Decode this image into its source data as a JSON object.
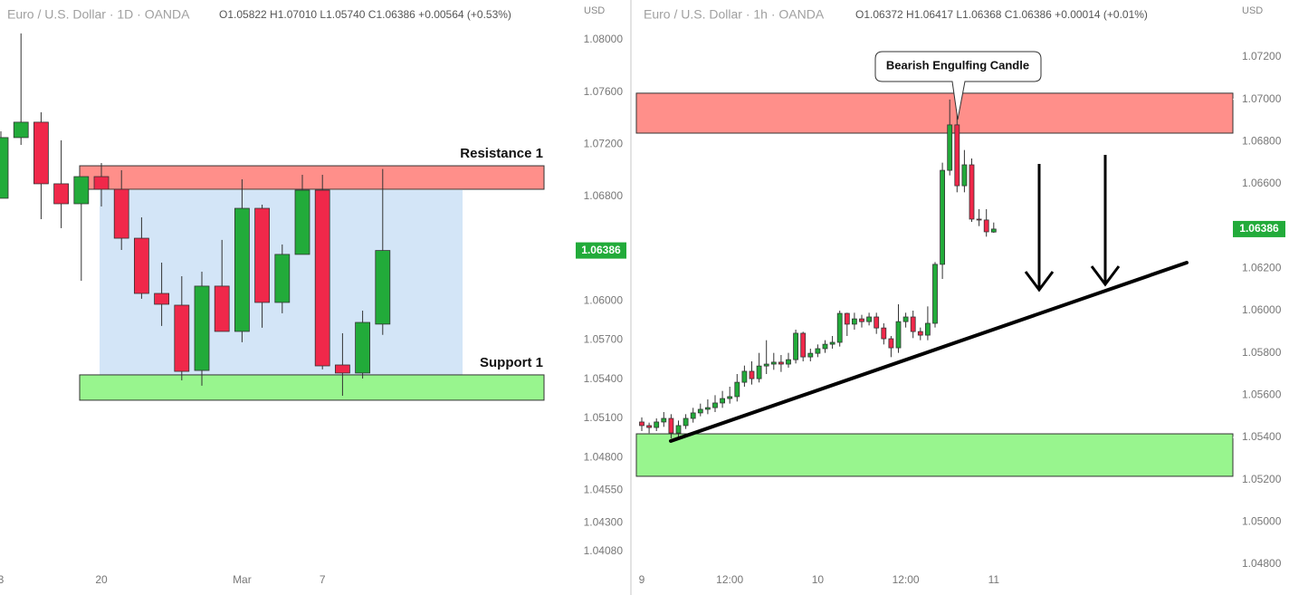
{
  "chart_data": [
    {
      "type": "candlestick",
      "title": "Euro / U.S. Dollar · 1D · OANDA",
      "subtitle": "O1.05822 H1.07010 L1.05740 C1.06386 +0.00564 (+0.53%)",
      "ylabel": "USD",
      "categories": [
        "3",
        null,
        null,
        null,
        null,
        "20",
        null,
        null,
        null,
        null,
        null,
        null,
        "Mar",
        null,
        null,
        null,
        "7",
        null,
        null,
        null
      ],
      "open": [
        1.06786,
        1.07251,
        1.07369,
        1.06897,
        1.06744,
        1.06952,
        1.06855,
        1.0648,
        1.06057,
        1.05967,
        1.05467,
        1.06113,
        1.05766,
        1.06709,
        1.05988,
        1.06356,
        1.06848,
        1.05509,
        1.05447,
        1.05822
      ],
      "high": [
        1.07299,
        1.08049,
        1.07445,
        1.0723,
        1.06952,
        1.07056,
        1.07001,
        1.0664,
        1.06293,
        1.06189,
        1.06224,
        1.06467,
        1.06931,
        1.06737,
        1.06432,
        1.06966,
        1.06966,
        1.05752,
        1.05925,
        1.0701
      ],
      "low": [
        1.06786,
        1.07195,
        1.06626,
        1.06557,
        1.06154,
        1.06723,
        1.0639,
        1.06016,
        1.05808,
        1.05391,
        1.0535,
        1.05766,
        1.05683,
        1.05794,
        1.05905,
        1.06356,
        1.05475,
        1.05273,
        1.05405,
        1.0574
      ],
      "close": [
        1.07251,
        1.07369,
        1.06897,
        1.06744,
        1.06952,
        1.06855,
        1.0648,
        1.06057,
        1.05974,
        1.0546,
        1.06113,
        1.05766,
        1.06709,
        1.05988,
        1.06356,
        1.06848,
        1.05502,
        1.05447,
        1.05835,
        1.06386
      ],
      "up_color": "#22ab3a",
      "down_color": "#f0284a",
      "ylim": [
        1.03934,
        1.08305
      ],
      "yticks": [
        {
          "value": 1.08,
          "label": "1.08000"
        },
        {
          "value": 1.076,
          "label": "1.07600"
        },
        {
          "value": 1.072,
          "label": "1.07200"
        },
        {
          "value": 1.068,
          "label": "1.06800"
        },
        {
          "value": 1.06,
          "label": "1.06000"
        },
        {
          "value": 1.057,
          "label": "1.05700"
        },
        {
          "value": 1.054,
          "label": "1.05400"
        },
        {
          "value": 1.051,
          "label": "1.05100"
        },
        {
          "value": 1.048,
          "label": "1.04800"
        },
        {
          "value": 1.0455,
          "label": "1.04550"
        },
        {
          "value": 1.043,
          "label": "1.04300"
        },
        {
          "value": 1.0408,
          "label": "1.04080"
        }
      ],
      "zones": [
        {
          "top": 1.06848,
          "bottom": 1.05433,
          "color": "#d3e5f7"
        },
        {
          "label": "Resistance 1",
          "top": 1.07035,
          "bottom": 1.06855,
          "color": "#ff8f8a"
        },
        {
          "label": "Support 1",
          "top": 1.05433,
          "bottom": 1.05239,
          "color": "#98f58e"
        }
      ]
    },
    {
      "type": "candlestick",
      "title": "Euro / U.S. Dollar · 1h · OANDA",
      "subtitle": "O1.06372 H1.06417 L1.06368 C1.06386 +0.00014 (+0.01%)",
      "ylabel": "USD",
      "annotation": "Bearish Engulfing Candle",
      "categories": [
        "9",
        null,
        null,
        null,
        null,
        null,
        null,
        null,
        null,
        null,
        null,
        null,
        "12:00",
        null,
        null,
        null,
        null,
        null,
        null,
        null,
        null,
        null,
        null,
        null,
        "10",
        null,
        null,
        null,
        null,
        null,
        null,
        null,
        null,
        null,
        null,
        null,
        "12:00",
        null,
        null,
        null,
        null,
        null,
        null,
        null,
        null,
        null,
        null,
        null,
        "11"
      ],
      "open": [
        1.05473,
        1.05456,
        1.05447,
        1.05473,
        1.0549,
        1.05421,
        1.05456,
        1.0549,
        1.05516,
        1.05533,
        1.05541,
        1.05563,
        1.05584,
        1.05593,
        1.05661,
        1.05713,
        1.05678,
        1.05738,
        1.05747,
        1.05756,
        1.05747,
        1.05768,
        1.05893,
        1.05781,
        1.05798,
        1.0582,
        1.05841,
        1.0585,
        1.05987,
        1.05936,
        1.05961,
        1.05948,
        1.0597,
        1.05918,
        1.05867,
        1.05824,
        1.05948,
        1.0597,
        1.05901,
        1.05884,
        1.0594,
        1.06219,
        1.06664,
        1.06879,
        1.06591,
        1.0669,
        1.06433,
        1.06429,
        1.06372
      ],
      "high": [
        1.05495,
        1.0547,
        1.0549,
        1.0552,
        1.0551,
        1.0548,
        1.0551,
        1.0554,
        1.0556,
        1.0558,
        1.056,
        1.0562,
        1.0564,
        1.057,
        1.0574,
        1.0576,
        1.058,
        1.0586,
        1.058,
        1.0579,
        1.058,
        1.0591,
        1.059,
        1.0582,
        1.0584,
        1.0586,
        1.0588,
        1.06,
        1.0599,
        1.0599,
        1.0598,
        1.0599,
        1.0599,
        1.0594,
        1.0588,
        1.0603,
        1.0599,
        1.06,
        1.0592,
        1.0602,
        1.0623,
        1.067,
        1.06999,
        1.07,
        1.0676,
        1.0672,
        1.0648,
        1.0648,
        1.06417
      ],
      "low": [
        1.0543,
        1.0542,
        1.0543,
        1.0545,
        1.05395,
        1.054,
        1.0544,
        1.0547,
        1.055,
        1.0551,
        1.0552,
        1.0554,
        1.0556,
        1.0557,
        1.0564,
        1.0565,
        1.0566,
        1.057,
        1.0572,
        1.0571,
        1.0573,
        1.0575,
        1.0576,
        1.0576,
        1.0578,
        1.058,
        1.0582,
        1.0583,
        1.0588,
        1.0591,
        1.0592,
        1.0593,
        1.0589,
        1.0584,
        1.0578,
        1.058,
        1.0592,
        1.0587,
        1.0586,
        1.0586,
        1.0592,
        1.0615,
        1.0664,
        1.0656,
        1.0656,
        1.0642,
        1.064,
        1.0635,
        1.06368
      ],
      "close": [
        1.05456,
        1.05447,
        1.05473,
        1.0549,
        1.05421,
        1.05456,
        1.0549,
        1.05516,
        1.05533,
        1.05541,
        1.05563,
        1.05584,
        1.05593,
        1.05661,
        1.05713,
        1.05678,
        1.05738,
        1.05747,
        1.05756,
        1.05747,
        1.05768,
        1.05893,
        1.05781,
        1.05798,
        1.0582,
        1.05841,
        1.0585,
        1.05987,
        1.05936,
        1.05961,
        1.05948,
        1.0597,
        1.05918,
        1.05867,
        1.05824,
        1.05948,
        1.0597,
        1.05901,
        1.05884,
        1.0594,
        1.06219,
        1.06664,
        1.06879,
        1.06591,
        1.0669,
        1.06433,
        1.06429,
        1.06373,
        1.06386
      ],
      "up_color": "#22ab3a",
      "down_color": "#f0284a",
      "ylim": [
        1.0477,
        1.0747
      ],
      "yticks": [
        {
          "value": 1.072,
          "label": "1.07200"
        },
        {
          "value": 1.07,
          "label": "1.07000"
        },
        {
          "value": 1.068,
          "label": "1.06800"
        },
        {
          "value": 1.066,
          "label": "1.06600"
        },
        {
          "value": 1.062,
          "label": "1.06200"
        },
        {
          "value": 1.06,
          "label": "1.06000"
        },
        {
          "value": 1.058,
          "label": "1.05800"
        },
        {
          "value": 1.056,
          "label": "1.05600"
        },
        {
          "value": 1.054,
          "label": "1.05400"
        },
        {
          "value": 1.052,
          "label": "1.05200"
        },
        {
          "value": 1.05,
          "label": "1.05000"
        },
        {
          "value": 1.048,
          "label": "1.04800"
        }
      ],
      "zones": [
        {
          "top": 1.07029,
          "bottom": 1.0684,
          "color": "#ff8f8a"
        },
        {
          "top": 1.05417,
          "bottom": 1.05216,
          "color": "#98f58e"
        }
      ]
    }
  ]
}
